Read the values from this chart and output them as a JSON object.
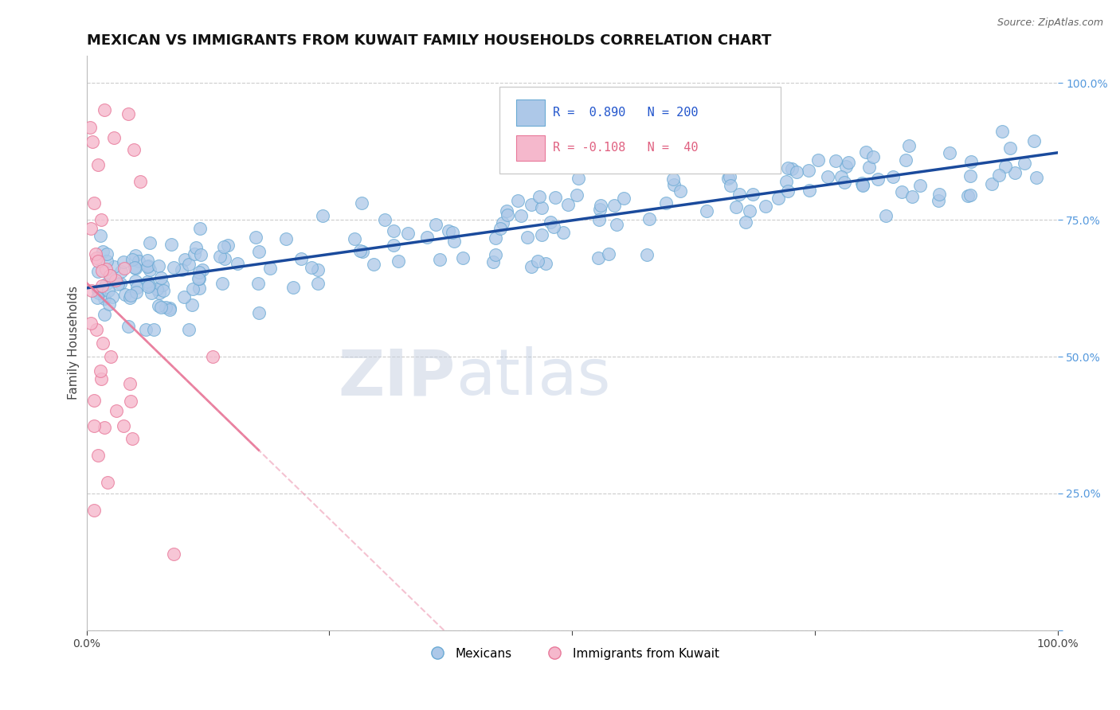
{
  "title": "MEXICAN VS IMMIGRANTS FROM KUWAIT FAMILY HOUSEHOLDS CORRELATION CHART",
  "source": "Source: ZipAtlas.com",
  "ylabel": "Family Households",
  "watermark": "ZIPatlas",
  "blue_R": 0.89,
  "blue_N": 200,
  "pink_R": -0.108,
  "pink_N": 40,
  "blue_color": "#adc8e8",
  "blue_edge": "#6aaad4",
  "pink_color": "#f5b8cc",
  "pink_edge": "#e8799a",
  "trend_blue": "#1a4a9c",
  "trend_pink": "#e8799a",
  "xmin": 0.0,
  "xmax": 1.0,
  "ymin": 0.0,
  "ymax": 1.05,
  "legend_blue_label": "Mexicans",
  "legend_pink_label": "Immigrants from Kuwait",
  "title_fontsize": 13,
  "axis_fontsize": 11,
  "tick_fontsize": 10,
  "watermark_zip_color": "#c8d4e8",
  "watermark_atlas_color": "#b8c8dc"
}
